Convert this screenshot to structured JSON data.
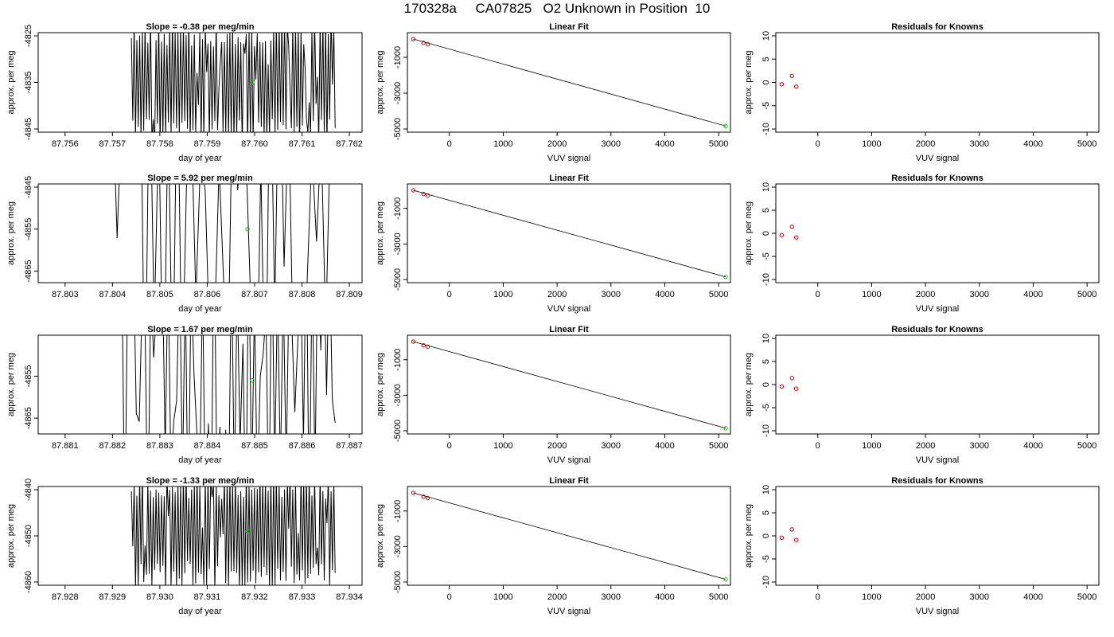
{
  "title": "170328a     CA07825   O2 Unknown in Position  10",
  "colors": {
    "data_line": "#000000",
    "known_points": "#cc0000",
    "unknown_point": "#00cc00"
  },
  "chart_data": [
    {
      "panel": "slope-1",
      "type": "line",
      "title": "Slope =  -0.38  per meg/min",
      "xlabel": "day of year",
      "ylabel": "approx. per meg",
      "xlim": [
        87.7555,
        87.7622
      ],
      "ylim": [
        -4845,
        -4825
      ],
      "xticks": [
        "87.756",
        "87.757",
        "87.758",
        "87.759",
        "87.760",
        "87.761",
        "87.762"
      ],
      "yticks": [
        "-4825",
        "-4835",
        "-4845"
      ],
      "trace": {
        "x_start": 87.7574,
        "x_end": 87.7617,
        "samples": 150,
        "density": 0.9,
        "center": -4835,
        "amplitude": 11,
        "seed": 11
      },
      "unknown_point": {
        "x": 87.75995,
        "y": -4835
      }
    },
    {
      "panel": "fit-1",
      "type": "scatter",
      "title": "Linear Fit",
      "xlabel": "VUV signal",
      "ylabel": "approx. per meg",
      "xlim": [
        -720,
        5160
      ],
      "ylim": [
        -5000,
        200
      ],
      "xticks": [
        "0",
        "1000",
        "2000",
        "3000",
        "4000",
        "5000"
      ],
      "yticks": [
        "-1000",
        "-3000",
        "-5000"
      ],
      "known_points": [
        {
          "x": -670,
          "y": 20
        },
        {
          "x": -480,
          "y": -190
        },
        {
          "x": -400,
          "y": -270
        }
      ],
      "unknown_point": {
        "x": 5130,
        "y": -4835
      },
      "fit_line": [
        [
          -670,
          20
        ],
        [
          5130,
          -4835
        ]
      ]
    },
    {
      "panel": "resid-1",
      "type": "scatter",
      "title": "Residuals for Knowns",
      "xlabel": "VUV signal",
      "ylabel": "approx. per meg",
      "xlim": [
        -720,
        5160
      ],
      "ylim": [
        -10,
        10
      ],
      "xticks": [
        "0",
        "1000",
        "2000",
        "3000",
        "4000",
        "5000"
      ],
      "yticks": [
        "10",
        "5",
        "0",
        "-5",
        "-10"
      ],
      "known_points": [
        {
          "x": -670,
          "y": -0.4
        },
        {
          "x": -480,
          "y": 1.4
        },
        {
          "x": -400,
          "y": -0.9
        }
      ]
    },
    {
      "panel": "slope-2",
      "type": "line",
      "title": "Slope =  5.92  per meg/min",
      "xlabel": "day of year",
      "ylabel": "approx. per meg",
      "xlim": [
        87.8025,
        87.8092
      ],
      "ylim": [
        -4867,
        -4845
      ],
      "xticks": [
        "87.803",
        "87.804",
        "87.805",
        "87.806",
        "87.807",
        "87.808",
        "87.809"
      ],
      "yticks": [
        "-4845",
        "-4855",
        "-4865"
      ],
      "trace": {
        "x_start": 87.804,
        "x_end": 87.8086,
        "samples": 48,
        "density": 0.3,
        "center": -4856,
        "amplitude": 40,
        "seed": 22
      },
      "unknown_point": {
        "x": 87.80685,
        "y": -4855
      }
    },
    {
      "panel": "fit-2",
      "type": "scatter",
      "title": "Linear Fit",
      "xlabel": "VUV signal",
      "ylabel": "approx. per meg",
      "xlim": [
        -720,
        5160
      ],
      "ylim": [
        -5000,
        200
      ],
      "xticks": [
        "0",
        "1000",
        "2000",
        "3000",
        "4000",
        "5000"
      ],
      "yticks": [
        "-1000",
        "-3000",
        "-5000"
      ],
      "known_points": [
        {
          "x": -670,
          "y": 20
        },
        {
          "x": -480,
          "y": -190
        },
        {
          "x": -400,
          "y": -270
        }
      ],
      "unknown_point": {
        "x": 5130,
        "y": -4855
      },
      "fit_line": [
        [
          -670,
          20
        ],
        [
          5130,
          -4855
        ]
      ]
    },
    {
      "panel": "resid-2",
      "type": "scatter",
      "title": "Residuals for Knowns",
      "xlabel": "VUV signal",
      "ylabel": "approx. per meg",
      "xlim": [
        -720,
        5160
      ],
      "ylim": [
        -10,
        10
      ],
      "xticks": [
        "0",
        "1000",
        "2000",
        "3000",
        "4000",
        "5000"
      ],
      "yticks": [
        "10",
        "5",
        "0",
        "-5",
        "-10"
      ],
      "known_points": [
        {
          "x": -670,
          "y": -0.4
        },
        {
          "x": -480,
          "y": 1.4
        },
        {
          "x": -400,
          "y": -0.9
        }
      ]
    },
    {
      "panel": "slope-3",
      "type": "line",
      "title": "Slope =  1.67  per meg/min",
      "xlabel": "day of year",
      "ylabel": "approx. per meg",
      "xlim": [
        87.8805,
        87.8872
      ],
      "ylim": [
        -4868,
        -4846
      ],
      "xticks": [
        "87.881",
        "87.882",
        "87.883",
        "87.884",
        "87.885",
        "87.886",
        "87.887"
      ],
      "yticks": [
        "-4855",
        "-4865"
      ],
      "trace": {
        "x_start": 87.8822,
        "x_end": 87.8867,
        "samples": 75,
        "density": 0.45,
        "center": -4856,
        "amplitude": 30,
        "seed": 33
      },
      "unknown_point": {
        "x": 87.88495,
        "y": -4856
      }
    },
    {
      "panel": "fit-3",
      "type": "scatter",
      "title": "Linear Fit",
      "xlabel": "VUV signal",
      "ylabel": "approx. per meg",
      "xlim": [
        -720,
        5160
      ],
      "ylim": [
        -5000,
        200
      ],
      "xticks": [
        "0",
        "1000",
        "2000",
        "3000",
        "4000",
        "5000"
      ],
      "yticks": [
        "-1000",
        "-3000",
        "-5000"
      ],
      "known_points": [
        {
          "x": -670,
          "y": 20
        },
        {
          "x": -480,
          "y": -190
        },
        {
          "x": -400,
          "y": -270
        }
      ],
      "unknown_point": {
        "x": 5130,
        "y": -4856
      },
      "fit_line": [
        [
          -670,
          20
        ],
        [
          5130,
          -4856
        ]
      ]
    },
    {
      "panel": "resid-3",
      "type": "scatter",
      "title": "Residuals for Knowns",
      "xlabel": "VUV signal",
      "ylabel": "approx. per meg",
      "xlim": [
        -720,
        5160
      ],
      "ylim": [
        -10,
        10
      ],
      "xticks": [
        "0",
        "1000",
        "2000",
        "3000",
        "4000",
        "5000"
      ],
      "yticks": [
        "10",
        "5",
        "0",
        "-5",
        "-10"
      ],
      "known_points": [
        {
          "x": -670,
          "y": -0.4
        },
        {
          "x": -480,
          "y": 1.4
        },
        {
          "x": -400,
          "y": -0.9
        }
      ]
    },
    {
      "panel": "slope-4",
      "type": "line",
      "title": "Slope =  -1.33  per meg/min",
      "xlabel": "day of year",
      "ylabel": "approx. per meg",
      "xlim": [
        87.9275,
        87.9342
      ],
      "ylim": [
        -4860,
        -4840
      ],
      "xticks": [
        "87.928",
        "87.929",
        "87.930",
        "87.931",
        "87.932",
        "87.933",
        "87.934"
      ],
      "yticks": [
        "-4840",
        "-4850",
        "-4860"
      ],
      "trace": {
        "x_start": 87.9294,
        "x_end": 87.9337,
        "samples": 150,
        "density": 0.9,
        "center": -4849,
        "amplitude": 10,
        "seed": 44
      },
      "unknown_point": {
        "x": 87.93185,
        "y": -4849
      }
    },
    {
      "panel": "fit-4",
      "type": "scatter",
      "title": "Linear Fit",
      "xlabel": "VUV signal",
      "ylabel": "approx. per meg",
      "xlim": [
        -720,
        5160
      ],
      "ylim": [
        -5000,
        200
      ],
      "xticks": [
        "0",
        "1000",
        "2000",
        "3000",
        "4000",
        "5000"
      ],
      "yticks": [
        "-1000",
        "-3000",
        "-5000"
      ],
      "known_points": [
        {
          "x": -670,
          "y": 20
        },
        {
          "x": -480,
          "y": -190
        },
        {
          "x": -400,
          "y": -270
        }
      ],
      "unknown_point": {
        "x": 5130,
        "y": -4849
      },
      "fit_line": [
        [
          -670,
          20
        ],
        [
          5130,
          -4849
        ]
      ]
    },
    {
      "panel": "resid-4",
      "type": "scatter",
      "title": "Residuals for Knowns",
      "xlabel": "VUV signal",
      "ylabel": "approx. per meg",
      "xlim": [
        -720,
        5160
      ],
      "ylim": [
        -10,
        10
      ],
      "xticks": [
        "0",
        "1000",
        "2000",
        "3000",
        "4000",
        "5000"
      ],
      "yticks": [
        "10",
        "5",
        "0",
        "-5",
        "-10"
      ],
      "known_points": [
        {
          "x": -670,
          "y": -0.4
        },
        {
          "x": -480,
          "y": 1.4
        },
        {
          "x": -400,
          "y": -0.9
        }
      ]
    }
  ]
}
